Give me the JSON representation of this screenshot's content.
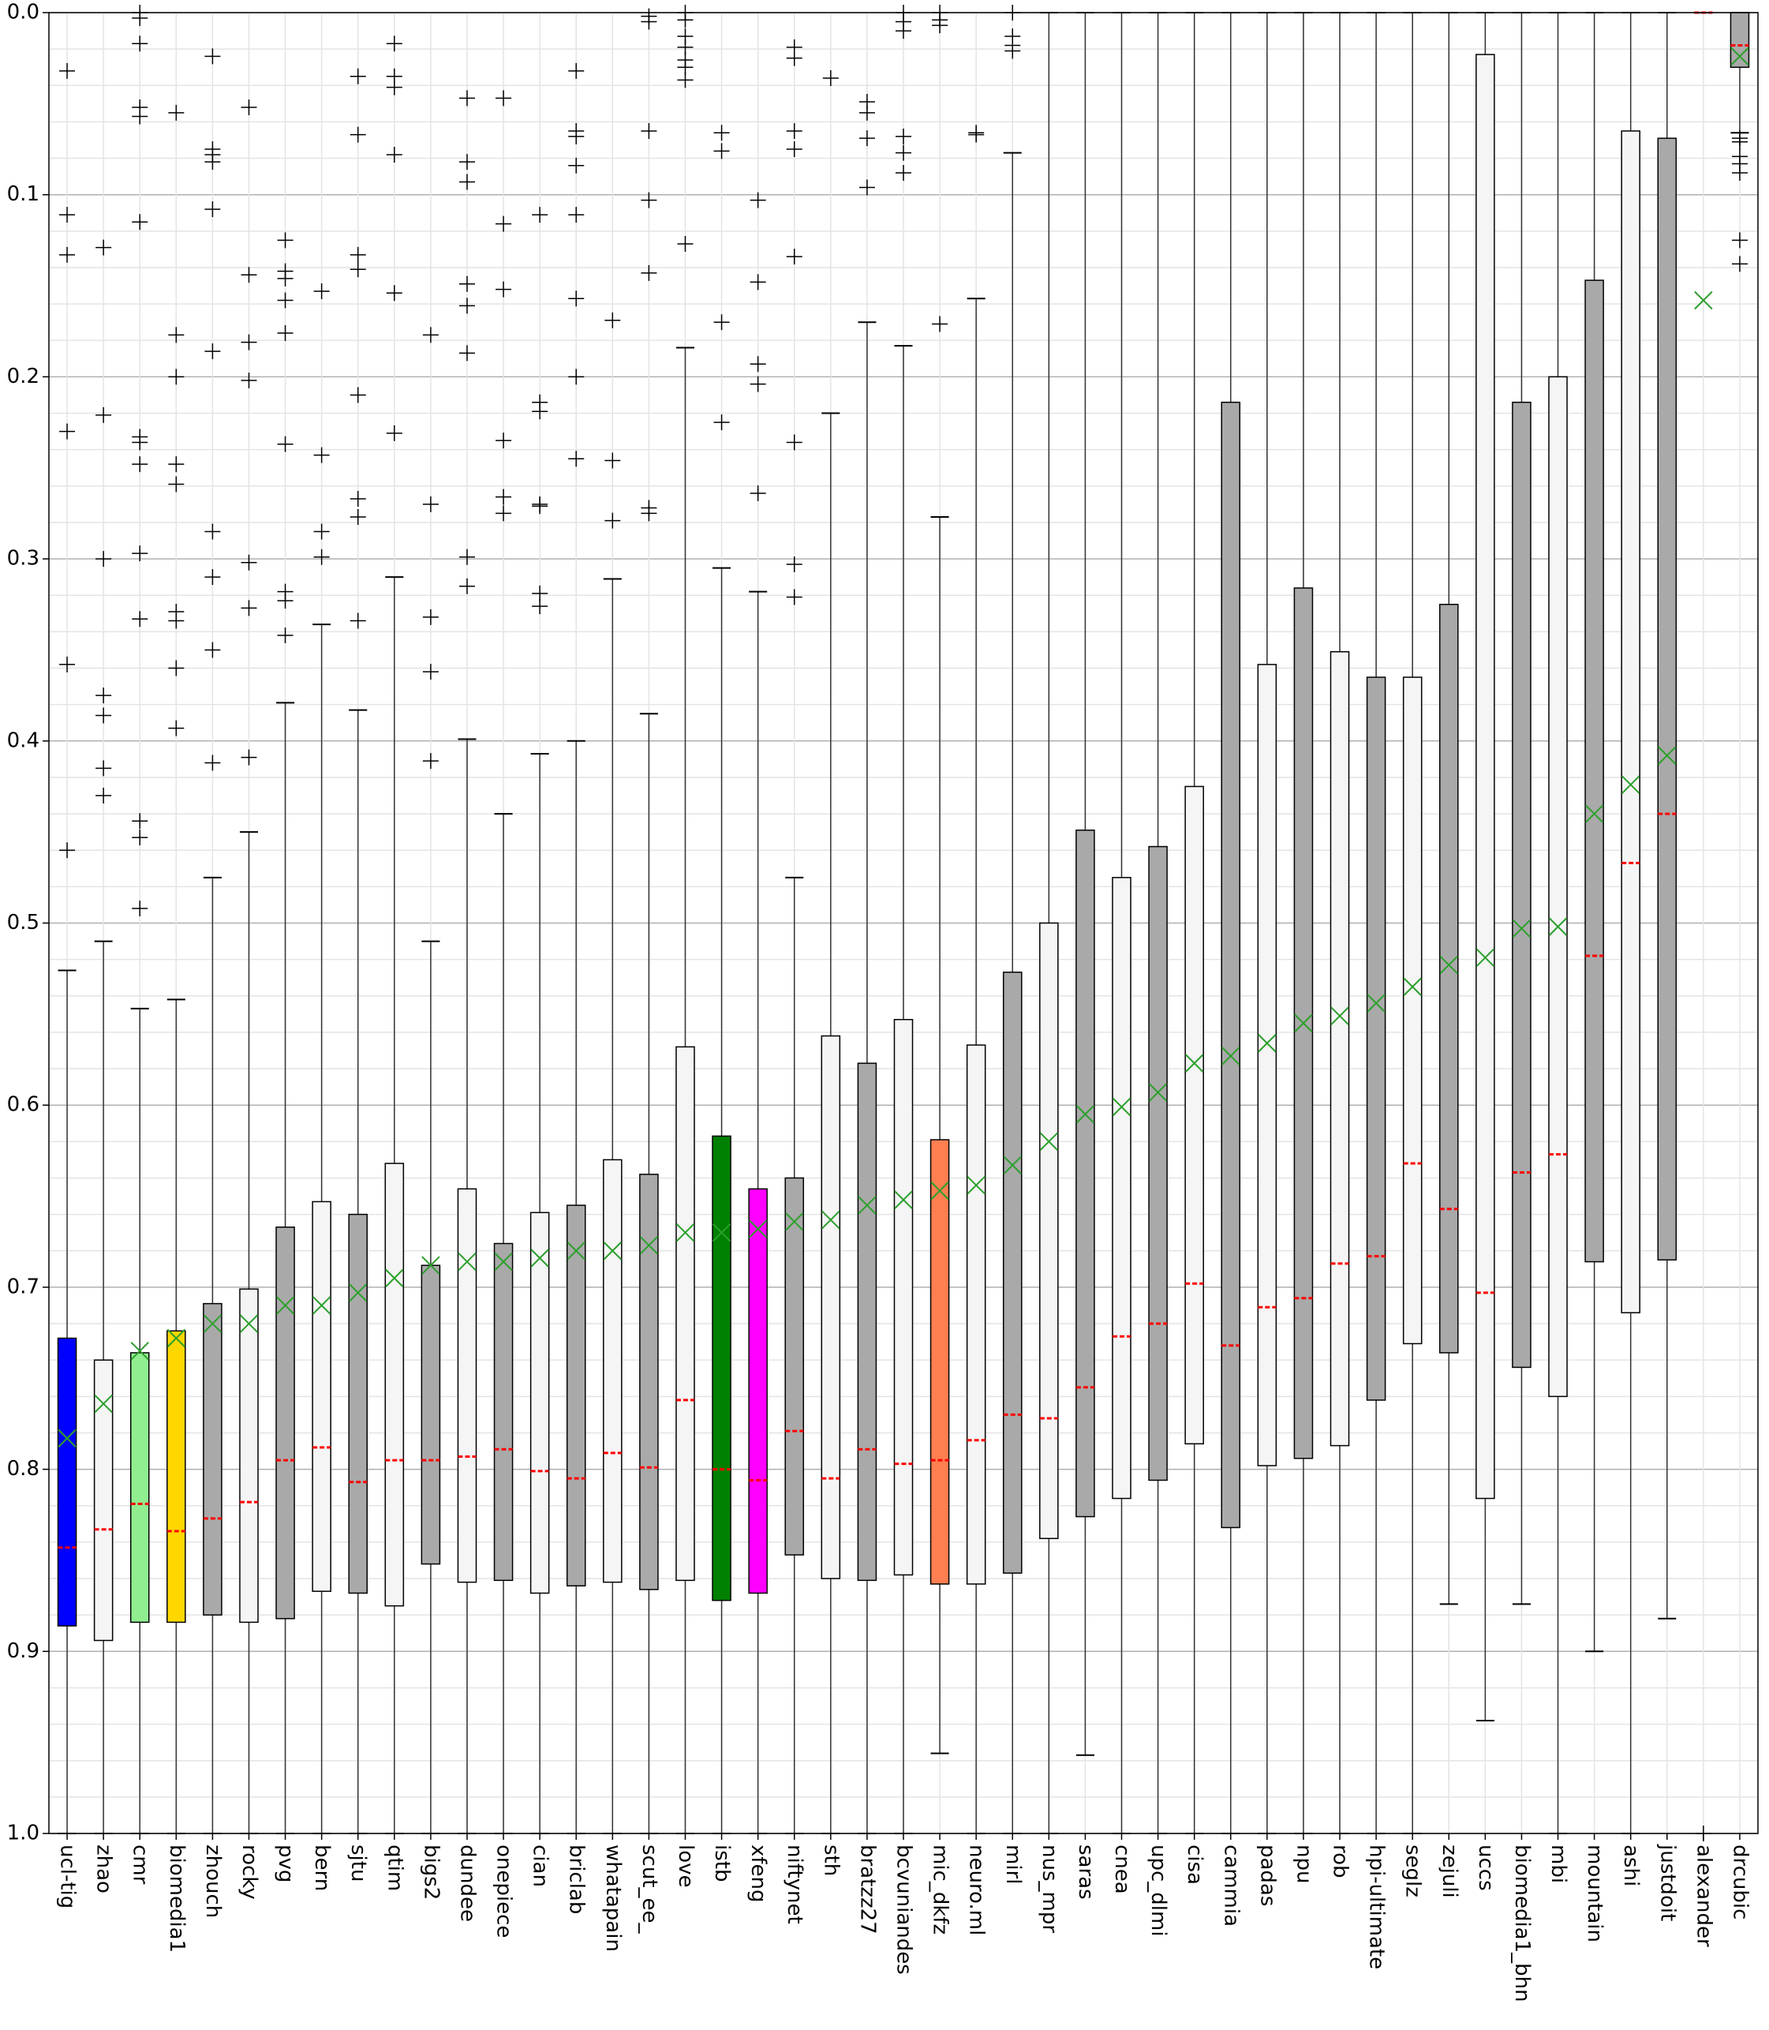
{
  "chart_data": {
    "type": "box",
    "categories": [
      "ucl-tig",
      "zhao",
      "cmr",
      "biomedia1",
      "zhouch",
      "rocky",
      "pvg",
      "bern",
      "sjtu",
      "qtim",
      "bigs2",
      "dundee",
      "onepiece",
      "cian",
      "briclab",
      "whatapain",
      "scut_ee_",
      "love",
      "istb",
      "xfeng",
      "niftynet",
      "sth",
      "bratzz27",
      "bcvuniandes",
      "mic_dkfz",
      "neuro.ml",
      "mirl",
      "nus_mpr",
      "saras",
      "cnea",
      "upc_dlmi",
      "cisa",
      "cammia",
      "padas",
      "npu",
      "rob",
      "hpi-ultimate",
      "seglz",
      "zejuli",
      "uccs",
      "biomedia1_bhn",
      "mbi",
      "mountain",
      "ashi",
      "justdoit",
      "alexander",
      "drcubic"
    ],
    "boxes": [
      {
        "color": "#0000ff",
        "whisker_low": 0.526,
        "q1": 0.728,
        "median": 0.843,
        "q3": 0.886,
        "whisker_high": 1.0,
        "mean": 0.783,
        "outliers": [
          0.032,
          0.111,
          0.133,
          0.23,
          0.358,
          0.46
        ]
      },
      {
        "color": "#f5f5f5",
        "whisker_low": 0.51,
        "q1": 0.74,
        "median": 0.833,
        "q3": 0.894,
        "whisker_high": 1.0,
        "mean": 0.764,
        "outliers": [
          0.129,
          0.221,
          0.3,
          0.375,
          0.386,
          0.415,
          0.43
        ]
      },
      {
        "color": "#90ee90",
        "whisker_low": 0.547,
        "q1": 0.736,
        "median": 0.819,
        "q3": 0.884,
        "whisker_high": 1.0,
        "mean": 0.735,
        "outliers": [
          0.0,
          0.003,
          0.017,
          0.052,
          0.057,
          0.115,
          0.233,
          0.236,
          0.248,
          0.297,
          0.333,
          0.444,
          0.453,
          0.492
        ]
      },
      {
        "color": "#ffd700",
        "whisker_low": 0.542,
        "q1": 0.724,
        "median": 0.834,
        "q3": 0.884,
        "whisker_high": 1.0,
        "mean": 0.728,
        "outliers": [
          0.055,
          0.177,
          0.2,
          0.248,
          0.259,
          0.329,
          0.334,
          0.36,
          0.393
        ]
      },
      {
        "color": "#a9a9a9",
        "whisker_low": 0.475,
        "q1": 0.709,
        "median": 0.827,
        "q3": 0.88,
        "whisker_high": 1.0,
        "mean": 0.72,
        "outliers": [
          0.024,
          0.075,
          0.078,
          0.082,
          0.108,
          0.186,
          0.285,
          0.31,
          0.35,
          0.412
        ]
      },
      {
        "color": "#f5f5f5",
        "whisker_low": 0.45,
        "q1": 0.701,
        "median": 0.818,
        "q3": 0.884,
        "whisker_high": 1.0,
        "mean": 0.72,
        "outliers": [
          0.052,
          0.144,
          0.181,
          0.202,
          0.302,
          0.327,
          0.409
        ]
      },
      {
        "color": "#a9a9a9",
        "whisker_low": 0.379,
        "q1": 0.667,
        "median": 0.795,
        "q3": 0.882,
        "whisker_high": 1.0,
        "mean": 0.71,
        "outliers": [
          0.125,
          0.142,
          0.146,
          0.158,
          0.176,
          0.237,
          0.318,
          0.323,
          0.342
        ]
      },
      {
        "color": "#f5f5f5",
        "whisker_low": 0.336,
        "q1": 0.653,
        "median": 0.788,
        "q3": 0.867,
        "whisker_high": 1.0,
        "mean": 0.71,
        "outliers": [
          0.153,
          0.243,
          0.285,
          0.299
        ]
      },
      {
        "color": "#a9a9a9",
        "whisker_low": 0.383,
        "q1": 0.66,
        "median": 0.807,
        "q3": 0.868,
        "whisker_high": 1.0,
        "mean": 0.703,
        "outliers": [
          0.035,
          0.067,
          0.133,
          0.141,
          0.21,
          0.267,
          0.277,
          0.334
        ]
      },
      {
        "color": "#f5f5f5",
        "whisker_low": 0.31,
        "q1": 0.632,
        "median": 0.795,
        "q3": 0.875,
        "whisker_high": 1.0,
        "mean": 0.695,
        "outliers": [
          0.017,
          0.035,
          0.041,
          0.078,
          0.154,
          0.231
        ]
      },
      {
        "color": "#a9a9a9",
        "whisker_low": 0.51,
        "q1": 0.688,
        "median": 0.795,
        "q3": 0.852,
        "whisker_high": 1.0,
        "mean": 0.688,
        "outliers": [
          0.177,
          0.27,
          0.332,
          0.362,
          0.411
        ]
      },
      {
        "color": "#f5f5f5",
        "whisker_low": 0.399,
        "q1": 0.646,
        "median": 0.793,
        "q3": 0.862,
        "whisker_high": 1.0,
        "mean": 0.686,
        "outliers": [
          0.047,
          0.082,
          0.093,
          0.149,
          0.161,
          0.187,
          0.299,
          0.315
        ]
      },
      {
        "color": "#a9a9a9",
        "whisker_low": 0.44,
        "q1": 0.676,
        "median": 0.789,
        "q3": 0.861,
        "whisker_high": 1.0,
        "mean": 0.686,
        "outliers": [
          0.047,
          0.116,
          0.152,
          0.235,
          0.266,
          0.275
        ]
      },
      {
        "color": "#f5f5f5",
        "whisker_low": 0.407,
        "q1": 0.659,
        "median": 0.801,
        "q3": 0.868,
        "whisker_high": 1.0,
        "mean": 0.684,
        "outliers": [
          0.111,
          0.214,
          0.219,
          0.27,
          0.271,
          0.319,
          0.326
        ]
      },
      {
        "color": "#a9a9a9",
        "whisker_low": 0.4,
        "q1": 0.655,
        "median": 0.805,
        "q3": 0.864,
        "whisker_high": 1.0,
        "mean": 0.68,
        "outliers": [
          0.032,
          0.065,
          0.068,
          0.084,
          0.111,
          0.157,
          0.2,
          0.245
        ]
      },
      {
        "color": "#f5f5f5",
        "whisker_low": 0.311,
        "q1": 0.63,
        "median": 0.791,
        "q3": 0.862,
        "whisker_high": 1.0,
        "mean": 0.68,
        "outliers": [
          0.169,
          0.246,
          0.279
        ]
      },
      {
        "color": "#a9a9a9",
        "whisker_low": 0.385,
        "q1": 0.638,
        "median": 0.799,
        "q3": 0.866,
        "whisker_high": 1.0,
        "mean": 0.677,
        "outliers": [
          0.002,
          0.005,
          0.065,
          0.103,
          0.143,
          0.272,
          0.275
        ]
      },
      {
        "color": "#f5f5f5",
        "whisker_low": 0.184,
        "q1": 0.568,
        "median": 0.762,
        "q3": 0.861,
        "whisker_high": 1.0,
        "mean": 0.67,
        "outliers": [
          0.0,
          0.004,
          0.013,
          0.019,
          0.026,
          0.03,
          0.037,
          0.127
        ]
      },
      {
        "color": "#008000",
        "whisker_low": 0.305,
        "q1": 0.617,
        "median": 0.8,
        "q3": 0.872,
        "whisker_high": 1.0,
        "mean": 0.67,
        "outliers": [
          0.066,
          0.076,
          0.17,
          0.225
        ]
      },
      {
        "color": "#ff00ff",
        "whisker_low": 0.318,
        "q1": 0.646,
        "median": 0.806,
        "q3": 0.868,
        "whisker_high": 1.0,
        "mean": 0.668,
        "outliers": [
          0.103,
          0.148,
          0.193,
          0.204,
          0.264
        ]
      },
      {
        "color": "#a9a9a9",
        "whisker_low": 0.475,
        "q1": 0.64,
        "median": 0.779,
        "q3": 0.847,
        "whisker_high": 1.0,
        "mean": 0.664,
        "outliers": [
          0.019,
          0.025,
          0.065,
          0.075,
          0.134,
          0.236,
          0.303,
          0.321
        ]
      },
      {
        "color": "#f5f5f5",
        "whisker_low": 0.22,
        "q1": 0.562,
        "median": 0.805,
        "q3": 0.86,
        "whisker_high": 1.0,
        "mean": 0.663,
        "outliers": [
          0.036
        ]
      },
      {
        "color": "#a9a9a9",
        "whisker_low": 0.17,
        "q1": 0.577,
        "median": 0.789,
        "q3": 0.861,
        "whisker_high": 1.0,
        "mean": 0.655,
        "outliers": [
          0.049,
          0.055,
          0.069,
          0.096
        ]
      },
      {
        "color": "#f5f5f5",
        "whisker_low": 0.183,
        "q1": 0.553,
        "median": 0.797,
        "q3": 0.858,
        "whisker_high": 1.0,
        "mean": 0.652,
        "outliers": [
          0.0,
          0.005,
          0.01,
          0.068,
          0.077,
          0.088
        ]
      },
      {
        "color": "#ff7f50",
        "whisker_low": 0.277,
        "q1": 0.619,
        "median": 0.795,
        "q3": 0.863,
        "whisker_high": 0.956,
        "mean": 0.647,
        "outliers": [
          0.0,
          0.004,
          0.007,
          0.171
        ]
      },
      {
        "color": "#f5f5f5",
        "whisker_low": 0.157,
        "q1": 0.567,
        "median": 0.784,
        "q3": 0.863,
        "whisker_high": 1.0,
        "mean": 0.644,
        "outliers": [
          0.066,
          0.067
        ]
      },
      {
        "color": "#a9a9a9",
        "whisker_low": 0.077,
        "q1": 0.527,
        "median": 0.77,
        "q3": 0.857,
        "whisker_high": 1.0,
        "mean": 0.633,
        "outliers": [
          0.0,
          0.013,
          0.018,
          0.021
        ]
      },
      {
        "color": "#f5f5f5",
        "whisker_low": 0.0,
        "q1": 0.5,
        "median": 0.772,
        "q3": 0.838,
        "whisker_high": 1.0,
        "mean": 0.62,
        "outliers": []
      },
      {
        "color": "#a9a9a9",
        "whisker_low": 0.0,
        "q1": 0.449,
        "median": 0.755,
        "q3": 0.826,
        "whisker_high": 0.957,
        "mean": 0.605,
        "outliers": []
      },
      {
        "color": "#f5f5f5",
        "whisker_low": 0.0,
        "q1": 0.475,
        "median": 0.727,
        "q3": 0.816,
        "whisker_high": 1.0,
        "mean": 0.601,
        "outliers": []
      },
      {
        "color": "#a9a9a9",
        "whisker_low": 0.0,
        "q1": 0.458,
        "median": 0.72,
        "q3": 0.806,
        "whisker_high": 1.0,
        "mean": 0.593,
        "outliers": []
      },
      {
        "color": "#f5f5f5",
        "whisker_low": 0.0,
        "q1": 0.425,
        "median": 0.698,
        "q3": 0.786,
        "whisker_high": 1.0,
        "mean": 0.577,
        "outliers": []
      },
      {
        "color": "#a9a9a9",
        "whisker_low": 0.0,
        "q1": 0.214,
        "median": 0.732,
        "q3": 0.832,
        "whisker_high": 1.0,
        "mean": 0.573,
        "outliers": []
      },
      {
        "color": "#f5f5f5",
        "whisker_low": 0.0,
        "q1": 0.358,
        "median": 0.711,
        "q3": 0.798,
        "whisker_high": 1.0,
        "mean": 0.566,
        "outliers": []
      },
      {
        "color": "#a9a9a9",
        "whisker_low": 0.0,
        "q1": 0.316,
        "median": 0.706,
        "q3": 0.794,
        "whisker_high": 1.0,
        "mean": 0.555,
        "outliers": []
      },
      {
        "color": "#f5f5f5",
        "whisker_low": 0.0,
        "q1": 0.351,
        "median": 0.687,
        "q3": 0.787,
        "whisker_high": 1.0,
        "mean": 0.551,
        "outliers": []
      },
      {
        "color": "#a9a9a9",
        "whisker_low": 0.0,
        "q1": 0.365,
        "median": 0.683,
        "q3": 0.762,
        "whisker_high": 1.0,
        "mean": 0.544,
        "outliers": []
      },
      {
        "color": "#f5f5f5",
        "whisker_low": 0.0,
        "q1": 0.365,
        "median": 0.632,
        "q3": 0.731,
        "whisker_high": 1.0,
        "mean": 0.535,
        "outliers": []
      },
      {
        "color": "#a9a9a9",
        "whisker_low": 0.0,
        "q1": 0.325,
        "median": 0.657,
        "q3": 0.736,
        "whisker_high": 0.874,
        "mean": 0.523,
        "outliers": []
      },
      {
        "color": "#f5f5f5",
        "whisker_low": 0.0,
        "q1": 0.023,
        "median": 0.703,
        "q3": 0.816,
        "whisker_high": 0.938,
        "mean": 0.519,
        "outliers": []
      },
      {
        "color": "#a9a9a9",
        "whisker_low": 0.0,
        "q1": 0.214,
        "median": 0.637,
        "q3": 0.744,
        "whisker_high": 0.874,
        "mean": 0.503,
        "outliers": []
      },
      {
        "color": "#f5f5f5",
        "whisker_low": 0.0,
        "q1": 0.2,
        "median": 0.627,
        "q3": 0.76,
        "whisker_high": 1.0,
        "mean": 0.502,
        "outliers": []
      },
      {
        "color": "#a9a9a9",
        "whisker_low": 0.0,
        "q1": 0.147,
        "median": 0.518,
        "q3": 0.686,
        "whisker_high": 0.9,
        "mean": 0.44,
        "outliers": []
      },
      {
        "color": "#f5f5f5",
        "whisker_low": 0.0,
        "q1": 0.065,
        "median": 0.467,
        "q3": 0.714,
        "whisker_high": 1.0,
        "mean": 0.424,
        "outliers": []
      },
      {
        "color": "#a9a9a9",
        "whisker_low": 0.0,
        "q1": 0.069,
        "median": 0.44,
        "q3": 0.685,
        "whisker_high": 0.882,
        "mean": 0.408,
        "outliers": []
      },
      {
        "color": "#f5f5f5",
        "whisker_low": 0.0,
        "q1": 0.0,
        "median": 0.0,
        "q3": 0.0,
        "whisker_high": 0.0,
        "mean": 0.158,
        "outliers": [
          1.0
        ]
      },
      {
        "color": "#a9a9a9",
        "whisker_low": 0.0,
        "q1": 0.0,
        "median": 0.018,
        "q3": 0.03,
        "whisker_high": 0.066,
        "mean": 0.024,
        "outliers": [
          0.069,
          0.071,
          0.079,
          0.083,
          0.088,
          0.125,
          0.138
        ]
      }
    ],
    "ylim": [
      1.0,
      0.0
    ],
    "yticks": [
      {
        "value": 0.0,
        "label": "0.0"
      },
      0.1,
      0.2,
      0.3,
      0.4,
      0.5,
      0.6,
      0.7,
      0.8,
      0.9,
      {
        "value": 1.0,
        "label": "1.0"
      }
    ],
    "minor_yticks": [
      0.02,
      0.04,
      0.06,
      0.08,
      0.12,
      0.14,
      0.16,
      0.18,
      0.22,
      0.24,
      0.26,
      0.28,
      0.32,
      0.34,
      0.36,
      0.38,
      0.42,
      0.44,
      0.46,
      0.48,
      0.52,
      0.54,
      0.56,
      0.58,
      0.62,
      0.64,
      0.66,
      0.68,
      0.72,
      0.74,
      0.76,
      0.78,
      0.82,
      0.84,
      0.86,
      0.88,
      0.92,
      0.94,
      0.96,
      0.98
    ],
    "grid": true,
    "median_color": "#ff0000",
    "mean_color": "#2ca02c",
    "outlier_color": "#000000"
  }
}
